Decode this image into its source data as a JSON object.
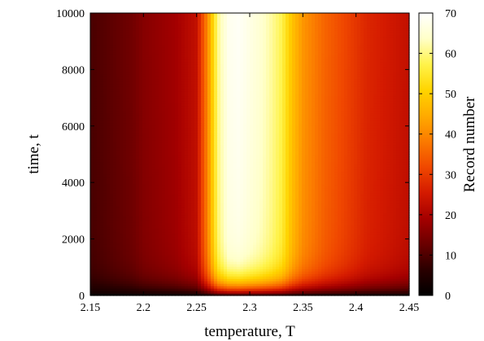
{
  "chart_data": {
    "type": "heatmap",
    "title": "",
    "xlabel": "temperature, T",
    "ylabel": "time, t",
    "colorbar_label": "Record number",
    "xlim": [
      2.15,
      2.45
    ],
    "ylim": [
      0,
      10000
    ],
    "zlim": [
      0,
      70
    ],
    "x_ticks": [
      "2.15",
      "2.2",
      "2.25",
      "2.3",
      "2.35",
      "2.4",
      "2.45"
    ],
    "x_tick_values": [
      2.15,
      2.2,
      2.25,
      2.3,
      2.35,
      2.4,
      2.45
    ],
    "y_ticks": [
      "0",
      "2000",
      "4000",
      "6000",
      "8000",
      "10000"
    ],
    "y_tick_values": [
      0,
      2000,
      4000,
      6000,
      8000,
      10000
    ],
    "colorbar_ticks": [
      "0",
      "10",
      "20",
      "30",
      "40",
      "50",
      "60",
      "70"
    ],
    "colorbar_tick_values": [
      0,
      10,
      20,
      30,
      40,
      50,
      60,
      70
    ],
    "colormap": [
      "#000000",
      "#2a0000",
      "#6a0000",
      "#a50000",
      "#d41a00",
      "#f04800",
      "#fb7a00",
      "#ffab00",
      "#ffd400",
      "#fff34a",
      "#ffffc8",
      "#ffffff"
    ],
    "x": [
      2.15,
      2.16,
      2.17,
      2.18,
      2.19,
      2.2,
      2.21,
      2.22,
      2.23,
      2.24,
      2.25,
      2.26,
      2.27,
      2.28,
      2.29,
      2.3,
      2.31,
      2.32,
      2.33,
      2.34,
      2.35,
      2.36,
      2.37,
      2.38,
      2.39,
      2.4,
      2.41,
      2.42,
      2.43,
      2.44,
      2.45
    ],
    "y": [
      0,
      250,
      500,
      1000,
      1500,
      2000,
      3000,
      4000,
      5000,
      6000,
      7000,
      8000,
      9000,
      10000
    ],
    "asymptote_by_x": [
      9,
      10,
      11,
      12,
      13,
      15,
      16,
      17,
      18,
      20,
      22,
      38,
      58,
      65,
      66,
      64,
      62,
      59,
      55,
      46,
      40,
      37,
      34,
      32,
      30,
      28,
      26,
      25,
      24,
      23,
      22
    ]
  }
}
